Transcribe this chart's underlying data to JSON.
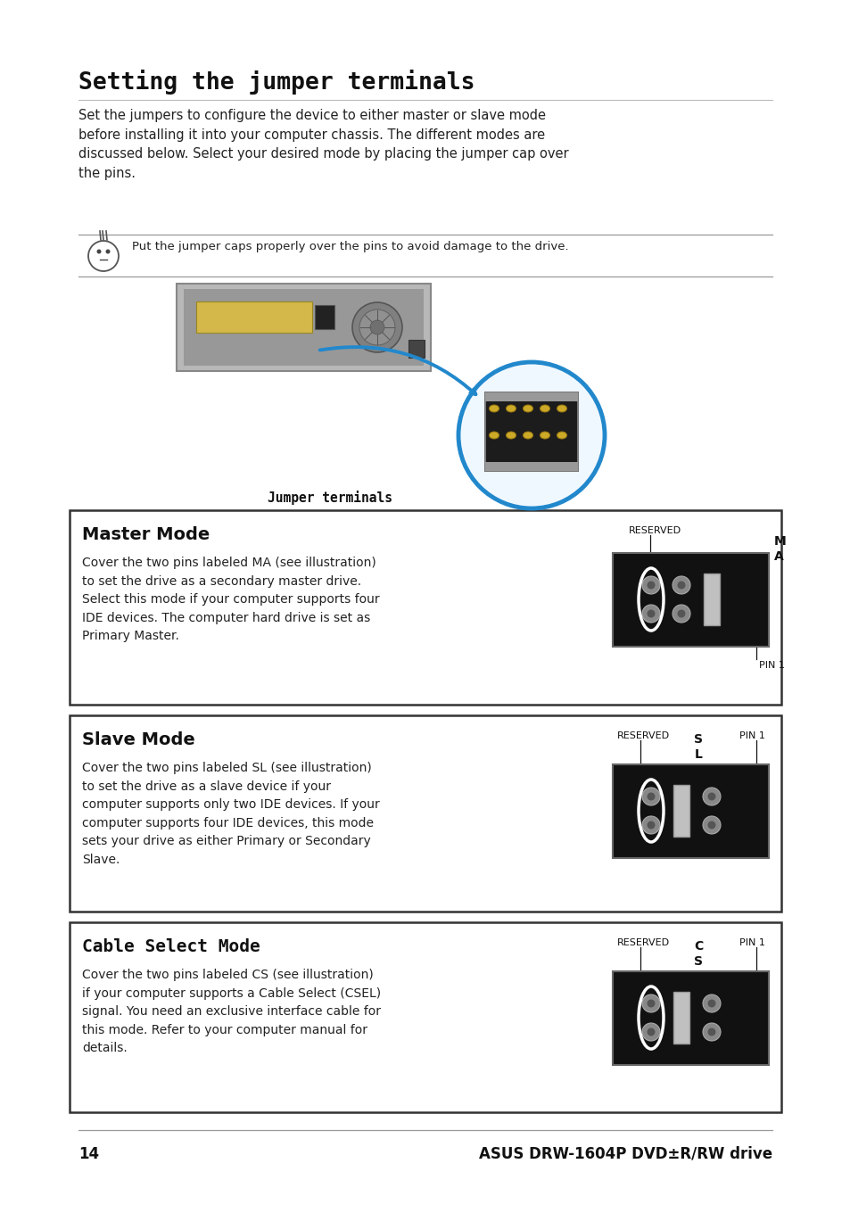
{
  "page_bg": "#ffffff",
  "title": "Setting the jumper terminals",
  "body_text": "Set the jumpers to configure the device to either master or slave mode\nbefore installing it into your computer chassis. The different modes are\ndiscussed below. Select your desired mode by placing the jumper cap over\nthe pins.",
  "note_text": "Put the jumper caps properly over the pins to avoid damage to the drive.",
  "jumper_label": "Jumper terminals",
  "modes": [
    {
      "title": "Master Mode",
      "title_font": "sans-serif",
      "body": "Cover the two pins labeled MA (see illustration)\nto set the drive as a secondary master drive.\nSelect this mode if your computer supports four\nIDE devices. The computer hard drive is set as\nPrimary Master.",
      "reserved_label": "RESERVED",
      "pin_label": "PIN 1",
      "pin_label_pos": "below",
      "mode_label": "M\nA",
      "mode_label_side": "right",
      "cap_col": 2,
      "n_cols": 3,
      "n_rows": 2
    },
    {
      "title": "Slave Mode",
      "title_font": "sans-serif",
      "body": "Cover the two pins labeled SL (see illustration)\nto set the drive as a slave device if your\ncomputer supports only two IDE devices. If your\ncomputer supports four IDE devices, this mode\nsets your drive as either Primary or Secondary\nSlave.",
      "reserved_label": "RESERVED",
      "pin_label": "PIN 1",
      "pin_label_pos": "top_right",
      "mode_label": "S\nL",
      "mode_label_side": "right_mid",
      "cap_col": 1,
      "n_cols": 3,
      "n_rows": 2
    },
    {
      "title": "Cable Select Mode",
      "title_font": "monospace",
      "body": "Cover the two pins labeled CS (see illustration)\nif your computer supports a Cable Select (CSEL)\nsignal. You need an exclusive interface cable for\nthis mode. Refer to your computer manual for\ndetails.",
      "reserved_label": "RESERVED",
      "pin_label": "PIN 1",
      "pin_label_pos": "top_right",
      "mode_label": "C\nS",
      "mode_label_side": "right_mid",
      "cap_col": 1,
      "n_cols": 3,
      "n_rows": 2
    }
  ],
  "footer_page": "14",
  "footer_text": "ASUS DRW-1604P DVD±R/RW drive"
}
